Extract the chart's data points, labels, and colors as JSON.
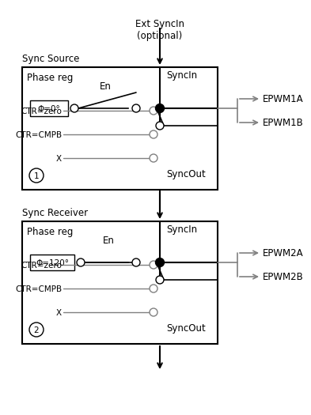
{
  "bg_color": "#ffffff",
  "line_color": "#000000",
  "gray_color": "#808080",
  "title_top": "Ext SyncIn\n(optional)",
  "label_sync_source": "Sync Source",
  "label_sync_receiver": "Sync Receiver",
  "label_phase_reg": "Phase reg",
  "label_syncin": "SyncIn",
  "label_syncout": "SyncOut",
  "label_en": "En",
  "label_phi0": "Φ=0°",
  "label_phi120": "Φ=120°",
  "label_ctr_zero": "CTR=zero",
  "label_ctr_cmpb": "CTR=CMPB",
  "label_x": "X",
  "label_epwm1a": "EPWM1A",
  "label_epwm1b": "EPWM1B",
  "label_epwm2a": "EPWM2A",
  "label_epwm2b": "EPWM2B",
  "label_1": "1",
  "label_2": "2",
  "font_size": 8.5
}
